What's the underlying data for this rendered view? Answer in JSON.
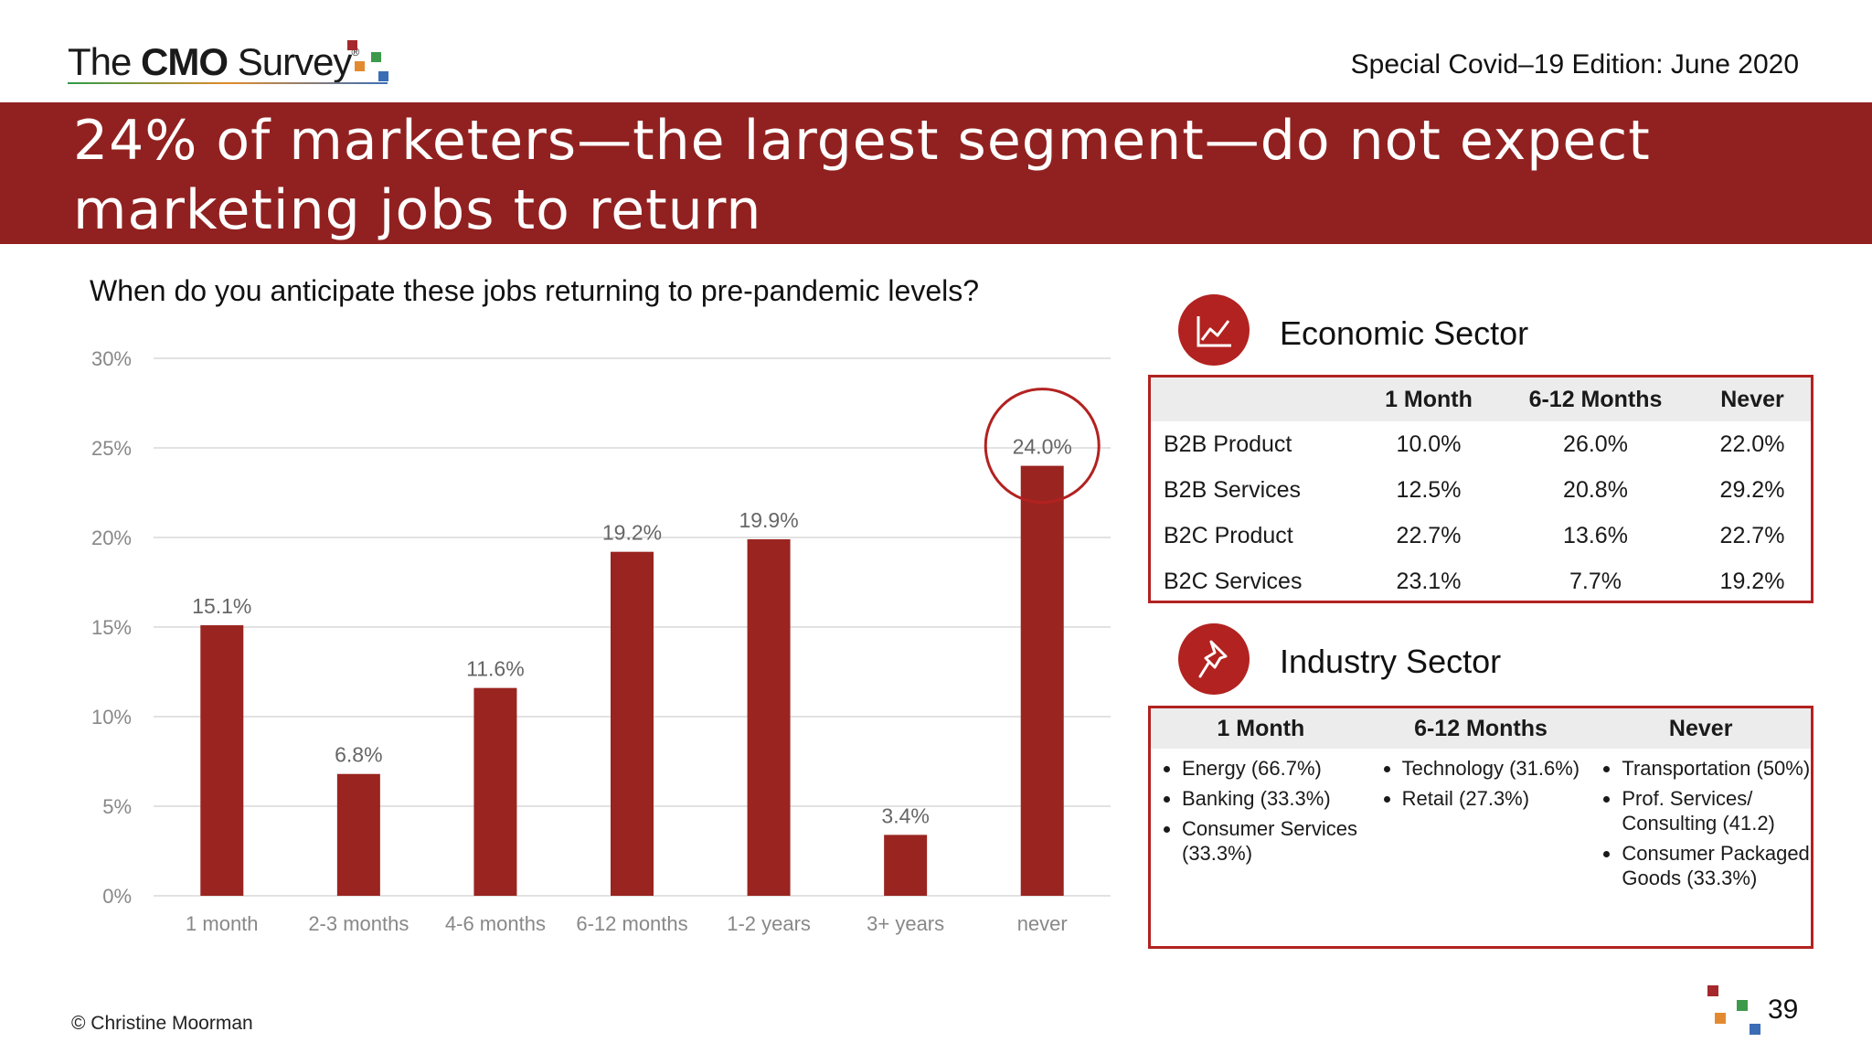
{
  "header": {
    "logo_prefix": "The ",
    "logo_bold": "CMO",
    "logo_suffix": " Survey",
    "logo_reg": "®",
    "edition": "Special Covid–19 Edition: June 2020"
  },
  "banner": {
    "title": "24% of marketers—the largest segment—do not expect marketing jobs to return"
  },
  "question": "When do you anticipate these jobs returning to pre-pandemic levels?",
  "colors": {
    "brand_red": "#912120",
    "bar": "#9a2420",
    "accent": "#b22220"
  },
  "chart_data": {
    "type": "bar",
    "title": "When do you anticipate these jobs returning to pre-pandemic levels?",
    "categories": [
      "1 month",
      "2-3 months",
      "4-6 months",
      "6-12 months",
      "1-2 years",
      "3+ years",
      "never"
    ],
    "values": [
      15.1,
      6.8,
      11.6,
      19.2,
      19.9,
      3.4,
      24.0
    ],
    "value_labels": [
      "15.1%",
      "6.8%",
      "11.6%",
      "19.2%",
      "19.9%",
      "3.4%",
      "24.0%"
    ],
    "yticks": [
      "0%",
      "5%",
      "10%",
      "15%",
      "20%",
      "25%",
      "30%"
    ],
    "ylim": [
      0,
      30
    ],
    "ylabel": "",
    "xlabel": "",
    "grid": true,
    "highlight_category": "never"
  },
  "economic": {
    "title": "Economic Sector",
    "icon": "line-chart-icon",
    "columns": [
      "",
      "1 Month",
      "6-12 Months",
      "Never"
    ],
    "rows": [
      [
        "B2B Product",
        "10.0%",
        "26.0%",
        "22.0%"
      ],
      [
        "B2B Services",
        "12.5%",
        "20.8%",
        "29.2%"
      ],
      [
        "B2C Product",
        "22.7%",
        "13.6%",
        "22.7%"
      ],
      [
        "B2C Services",
        "23.1%",
        "7.7%",
        "19.2%"
      ]
    ]
  },
  "industry": {
    "title": "Industry Sector",
    "icon": "pushpin-icon",
    "columns": [
      {
        "header": "1 Month",
        "items": [
          "Energy (66.7%)",
          "Banking (33.3%)",
          "Consumer Services (33.3%)"
        ]
      },
      {
        "header": "6-12 Months",
        "items": [
          "Technology (31.6%)",
          "Retail (27.3%)"
        ]
      },
      {
        "header": "Never",
        "items": [
          "Transportation (50%)",
          "Prof. Services/ Consulting (41.2)",
          "Consumer Packaged Goods (33.3%)"
        ]
      }
    ]
  },
  "footer": {
    "copyright": "© Christine Moorman",
    "page_number": "39"
  }
}
